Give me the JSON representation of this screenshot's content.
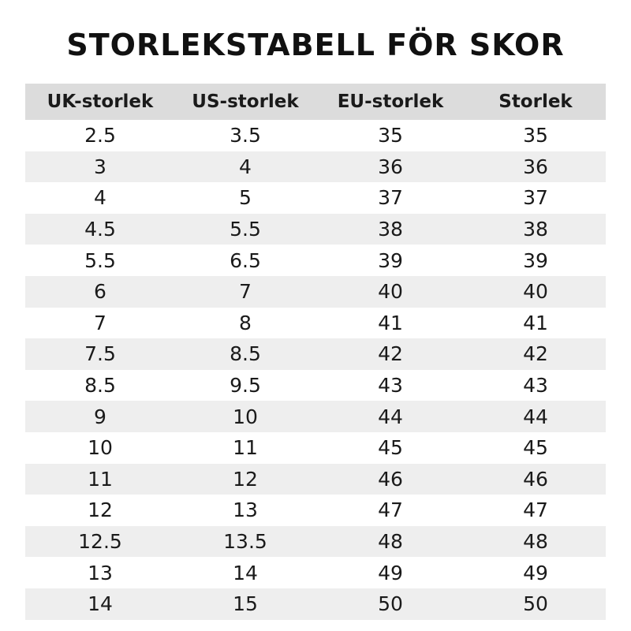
{
  "title": "STORLEKSTABELL FÖR SKOR",
  "table": {
    "headers": [
      "UK-storlek",
      "US-storlek",
      "EU-storlek",
      "Storlek"
    ],
    "rows": [
      [
        "2.5",
        "3.5",
        "35",
        "35"
      ],
      [
        "3",
        "4",
        "36",
        "36"
      ],
      [
        "4",
        "5",
        "37",
        "37"
      ],
      [
        "4.5",
        "5.5",
        "38",
        "38"
      ],
      [
        "5.5",
        "6.5",
        "39",
        "39"
      ],
      [
        "6",
        "7",
        "40",
        "40"
      ],
      [
        "7",
        "8",
        "41",
        "41"
      ],
      [
        "7.5",
        "8.5",
        "42",
        "42"
      ],
      [
        "8.5",
        "9.5",
        "43",
        "43"
      ],
      [
        "9",
        "10",
        "44",
        "44"
      ],
      [
        "10",
        "11",
        "45",
        "45"
      ],
      [
        "11",
        "12",
        "46",
        "46"
      ],
      [
        "12",
        "13",
        "47",
        "47"
      ],
      [
        "12.5",
        "13.5",
        "48",
        "48"
      ],
      [
        "13",
        "14",
        "49",
        "49"
      ],
      [
        "14",
        "15",
        "50",
        "50"
      ]
    ]
  },
  "colors": {
    "header_background": "#dcdcdc",
    "stripe_background": "#eeeeee",
    "text": "#111111"
  }
}
